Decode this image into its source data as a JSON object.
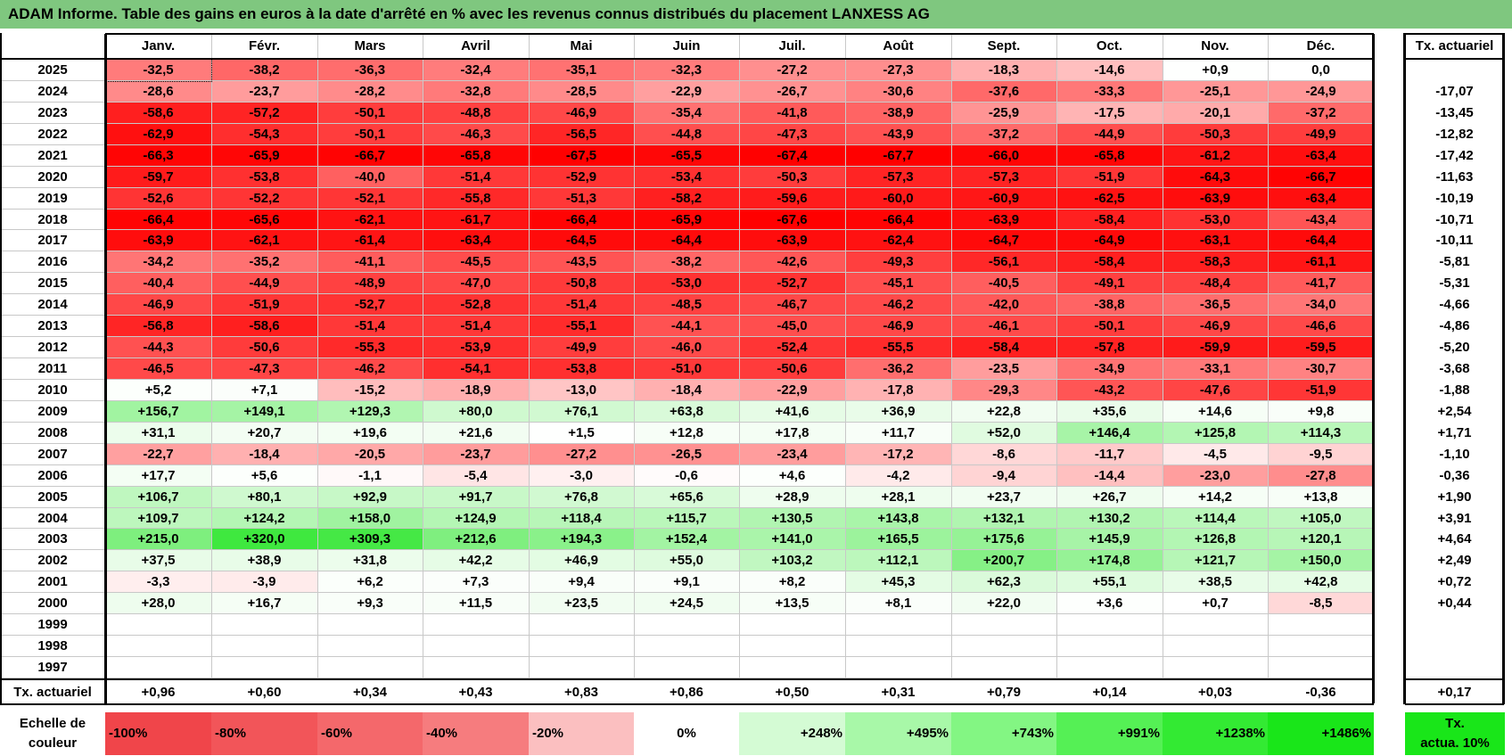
{
  "title": "ADAM Informe. Table des gains en euros à la date d'arrêté en % avec les revenus connus distribués du placement LANXESS AG",
  "months": [
    "Janv.",
    "Févr.",
    "Mars",
    "Avril",
    "Mai",
    "Juin",
    "Juil.",
    "Août",
    "Sept.",
    "Oct.",
    "Nov.",
    "Déc."
  ],
  "actuarial_header": "Tx. actuariel",
  "rows": [
    {
      "year": "2025",
      "values": [
        "-32,5",
        "-38,2",
        "-36,3",
        "-32,4",
        "-35,1",
        "-32,3",
        "-27,2",
        "-27,3",
        "-18,3",
        "-14,6",
        "+0,9",
        "0,0"
      ],
      "rate": ""
    },
    {
      "year": "2024",
      "values": [
        "-28,6",
        "-23,7",
        "-28,2",
        "-32,8",
        "-28,5",
        "-22,9",
        "-26,7",
        "-30,6",
        "-37,6",
        "-33,3",
        "-25,1",
        "-24,9"
      ],
      "rate": "-17,07"
    },
    {
      "year": "2023",
      "values": [
        "-58,6",
        "-57,2",
        "-50,1",
        "-48,8",
        "-46,9",
        "-35,4",
        "-41,8",
        "-38,9",
        "-25,9",
        "-17,5",
        "-20,1",
        "-37,2"
      ],
      "rate": "-13,45"
    },
    {
      "year": "2022",
      "values": [
        "-62,9",
        "-54,3",
        "-50,1",
        "-46,3",
        "-56,5",
        "-44,8",
        "-47,3",
        "-43,9",
        "-37,2",
        "-44,9",
        "-50,3",
        "-49,9"
      ],
      "rate": "-12,82"
    },
    {
      "year": "2021",
      "values": [
        "-66,3",
        "-65,9",
        "-66,7",
        "-65,8",
        "-67,5",
        "-65,5",
        "-67,4",
        "-67,7",
        "-66,0",
        "-65,8",
        "-61,2",
        "-63,4"
      ],
      "rate": "-17,42"
    },
    {
      "year": "2020",
      "values": [
        "-59,7",
        "-53,8",
        "-40,0",
        "-51,4",
        "-52,9",
        "-53,4",
        "-50,3",
        "-57,3",
        "-57,3",
        "-51,9",
        "-64,3",
        "-66,7"
      ],
      "rate": "-11,63"
    },
    {
      "year": "2019",
      "values": [
        "-52,6",
        "-52,2",
        "-52,1",
        "-55,8",
        "-51,3",
        "-58,2",
        "-59,6",
        "-60,0",
        "-60,9",
        "-62,5",
        "-63,9",
        "-63,4"
      ],
      "rate": "-10,19"
    },
    {
      "year": "2018",
      "values": [
        "-66,4",
        "-65,6",
        "-62,1",
        "-61,7",
        "-66,4",
        "-65,9",
        "-67,6",
        "-66,4",
        "-63,9",
        "-58,4",
        "-53,0",
        "-43,4"
      ],
      "rate": "-10,71"
    },
    {
      "year": "2017",
      "values": [
        "-63,9",
        "-62,1",
        "-61,4",
        "-63,4",
        "-64,5",
        "-64,4",
        "-63,9",
        "-62,4",
        "-64,7",
        "-64,9",
        "-63,1",
        "-64,4"
      ],
      "rate": "-10,11"
    },
    {
      "year": "2016",
      "values": [
        "-34,2",
        "-35,2",
        "-41,1",
        "-45,5",
        "-43,5",
        "-38,2",
        "-42,6",
        "-49,3",
        "-56,1",
        "-58,4",
        "-58,3",
        "-61,1"
      ],
      "rate": "-5,81"
    },
    {
      "year": "2015",
      "values": [
        "-40,4",
        "-44,9",
        "-48,9",
        "-47,0",
        "-50,8",
        "-53,0",
        "-52,7",
        "-45,1",
        "-40,5",
        "-49,1",
        "-48,4",
        "-41,7"
      ],
      "rate": "-5,31"
    },
    {
      "year": "2014",
      "values": [
        "-46,9",
        "-51,9",
        "-52,7",
        "-52,8",
        "-51,4",
        "-48,5",
        "-46,7",
        "-46,2",
        "-42,0",
        "-38,8",
        "-36,5",
        "-34,0"
      ],
      "rate": "-4,66"
    },
    {
      "year": "2013",
      "values": [
        "-56,8",
        "-58,6",
        "-51,4",
        "-51,4",
        "-55,1",
        "-44,1",
        "-45,0",
        "-46,9",
        "-46,1",
        "-50,1",
        "-46,9",
        "-46,6"
      ],
      "rate": "-4,86"
    },
    {
      "year": "2012",
      "values": [
        "-44,3",
        "-50,6",
        "-55,3",
        "-53,9",
        "-49,9",
        "-46,0",
        "-52,4",
        "-55,5",
        "-58,4",
        "-57,8",
        "-59,9",
        "-59,5"
      ],
      "rate": "-5,20"
    },
    {
      "year": "2011",
      "values": [
        "-46,5",
        "-47,3",
        "-46,2",
        "-54,1",
        "-53,8",
        "-51,0",
        "-50,6",
        "-36,2",
        "-23,5",
        "-34,9",
        "-33,1",
        "-30,7"
      ],
      "rate": "-3,68"
    },
    {
      "year": "2010",
      "values": [
        "+5,2",
        "+7,1",
        "-15,2",
        "-18,9",
        "-13,0",
        "-18,4",
        "-22,9",
        "-17,8",
        "-29,3",
        "-43,2",
        "-47,6",
        "-51,9"
      ],
      "rate": "-1,88"
    },
    {
      "year": "2009",
      "values": [
        "+156,7",
        "+149,1",
        "+129,3",
        "+80,0",
        "+76,1",
        "+63,8",
        "+41,6",
        "+36,9",
        "+22,8",
        "+35,6",
        "+14,6",
        "+9,8"
      ],
      "rate": "+2,54"
    },
    {
      "year": "2008",
      "values": [
        "+31,1",
        "+20,7",
        "+19,6",
        "+21,6",
        "+1,5",
        "+12,8",
        "+17,8",
        "+11,7",
        "+52,0",
        "+146,4",
        "+125,8",
        "+114,3"
      ],
      "rate": "+1,71"
    },
    {
      "year": "2007",
      "values": [
        "-22,7",
        "-18,4",
        "-20,5",
        "-23,7",
        "-27,2",
        "-26,5",
        "-23,4",
        "-17,2",
        "-8,6",
        "-11,7",
        "-4,5",
        "-9,5"
      ],
      "rate": "-1,10"
    },
    {
      "year": "2006",
      "values": [
        "+17,7",
        "+5,6",
        "-1,1",
        "-5,4",
        "-3,0",
        "-0,6",
        "+4,6",
        "-4,2",
        "-9,4",
        "-14,4",
        "-23,0",
        "-27,8"
      ],
      "rate": "-0,36"
    },
    {
      "year": "2005",
      "values": [
        "+106,7",
        "+80,1",
        "+92,9",
        "+91,7",
        "+76,8",
        "+65,6",
        "+28,9",
        "+28,1",
        "+23,7",
        "+26,7",
        "+14,2",
        "+13,8"
      ],
      "rate": "+1,90"
    },
    {
      "year": "2004",
      "values": [
        "+109,7",
        "+124,2",
        "+158,0",
        "+124,9",
        "+118,4",
        "+115,7",
        "+130,5",
        "+143,8",
        "+132,1",
        "+130,2",
        "+114,4",
        "+105,0"
      ],
      "rate": "+3,91"
    },
    {
      "year": "2003",
      "values": [
        "+215,0",
        "+320,0",
        "+309,3",
        "+212,6",
        "+194,3",
        "+152,4",
        "+141,0",
        "+165,5",
        "+175,6",
        "+145,9",
        "+126,8",
        "+120,1"
      ],
      "rate": "+4,64"
    },
    {
      "year": "2002",
      "values": [
        "+37,5",
        "+38,9",
        "+31,8",
        "+42,2",
        "+46,9",
        "+55,0",
        "+103,2",
        "+112,1",
        "+200,7",
        "+174,8",
        "+121,7",
        "+150,0"
      ],
      "rate": "+2,49"
    },
    {
      "year": "2001",
      "values": [
        "-3,3",
        "-3,9",
        "+6,2",
        "+7,3",
        "+9,4",
        "+9,1",
        "+8,2",
        "+45,3",
        "+62,3",
        "+55,1",
        "+38,5",
        "+42,8"
      ],
      "rate": "+0,72"
    },
    {
      "year": "2000",
      "values": [
        "+28,0",
        "+16,7",
        "+9,3",
        "+11,5",
        "+23,5",
        "+24,5",
        "+13,5",
        "+8,1",
        "+22,0",
        "+3,6",
        "+0,7",
        "-8,5"
      ],
      "rate": "+0,44"
    },
    {
      "year": "1999",
      "values": [
        "",
        "",
        "",
        "",
        "",
        "",
        "",
        "",
        "",
        "",
        "",
        ""
      ],
      "rate": ""
    },
    {
      "year": "1998",
      "values": [
        "",
        "",
        "",
        "",
        "",
        "",
        "",
        "",
        "",
        "",
        "",
        ""
      ],
      "rate": ""
    },
    {
      "year": "1997",
      "values": [
        "",
        "",
        "",
        "",
        "",
        "",
        "",
        "",
        "",
        "",
        "",
        ""
      ],
      "rate": ""
    }
  ],
  "footer": {
    "label": "Tx. actuariel",
    "values": [
      "+0,96",
      "+0,60",
      "+0,34",
      "+0,43",
      "+0,83",
      "+0,86",
      "+0,50",
      "+0,31",
      "+0,79",
      "+0,14",
      "+0,03",
      "-0,36"
    ],
    "total": "+0,17"
  },
  "legend": {
    "label_line1": "Echelle de",
    "label_line2": "couleur",
    "items": [
      "-100%",
      "-80%",
      "-60%",
      "-40%",
      "-20%",
      "0%",
      "+248%",
      "+495%",
      "+743%",
      "+991%",
      "+1238%",
      "+1486%"
    ],
    "colors": [
      "#f0454a",
      "#f25559",
      "#f4686b",
      "#f67c7e",
      "#fbbfc0",
      "#ffffff",
      "#d4fbd4",
      "#a8f8a8",
      "#83f683",
      "#55f055",
      "#33ea33",
      "#19e619"
    ],
    "rate_line1": "Tx.",
    "rate_line2": "actua. 10%",
    "rate_color": "#19e619"
  }
}
